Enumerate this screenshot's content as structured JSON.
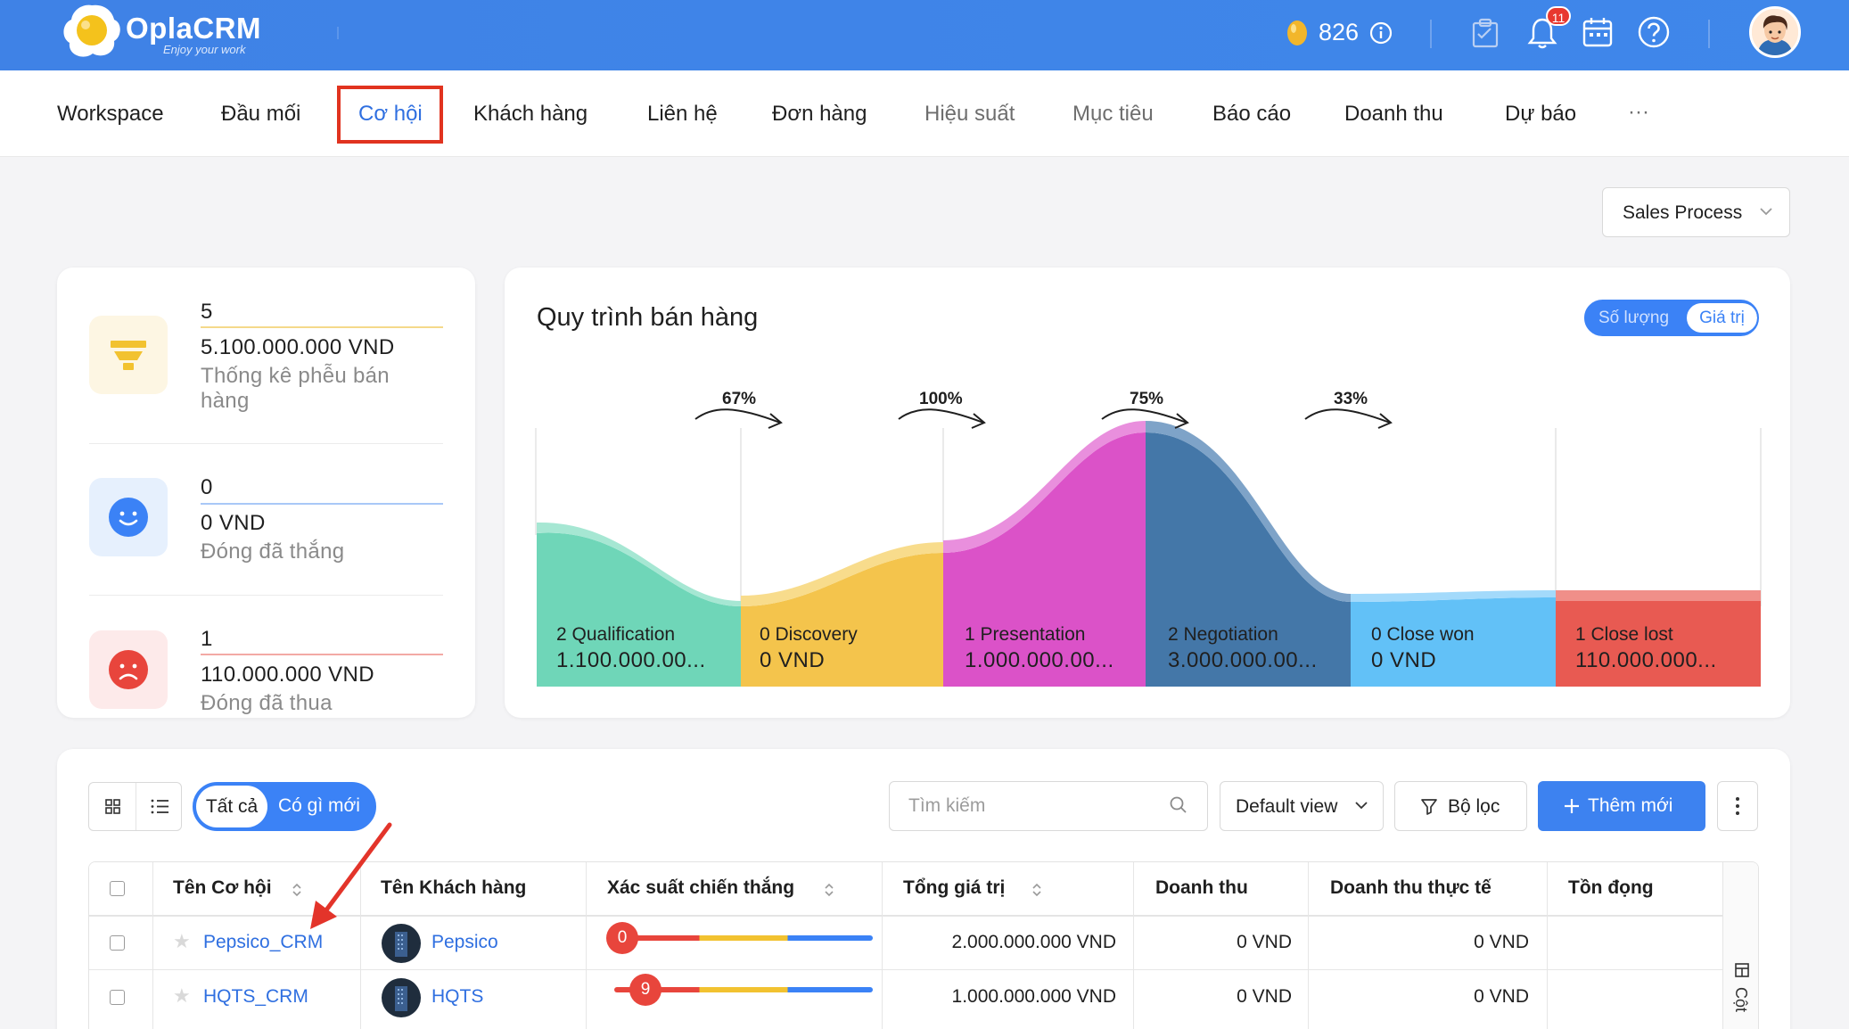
{
  "header": {
    "brand": "OplaCRM",
    "tagline": "Enjoy your work",
    "coins": "826",
    "notification_count": "11"
  },
  "nav": {
    "items": [
      {
        "label": "Workspace",
        "state": "normal"
      },
      {
        "label": "Đầu mối",
        "state": "normal"
      },
      {
        "label": "Cơ hội",
        "state": "active"
      },
      {
        "label": "Khách hàng",
        "state": "normal"
      },
      {
        "label": "Liên hệ",
        "state": "normal"
      },
      {
        "label": "Đơn hàng",
        "state": "normal"
      },
      {
        "label": "Hiệu suất",
        "state": "muted"
      },
      {
        "label": "Mục tiêu",
        "state": "muted"
      },
      {
        "label": "Báo cáo",
        "state": "normal"
      },
      {
        "label": "Doanh thu",
        "state": "normal"
      },
      {
        "label": "Dự báo",
        "state": "normal"
      }
    ],
    "more": "···"
  },
  "process_select": {
    "value": "Sales Process"
  },
  "stats": [
    {
      "count": "5",
      "amount": "5.100.000.000 VND",
      "label": "Thống kê phễu bán hàng",
      "color": "#f2c94c",
      "icon": "funnel-icon"
    },
    {
      "count": "0",
      "amount": "0 VND",
      "label": "Đóng đã thắng",
      "color": "#3b82f6",
      "icon": "smile-icon"
    },
    {
      "count": "1",
      "amount": "110.000.000 VND",
      "label": "Đóng đã thua",
      "color": "#e8453c",
      "icon": "sad-icon"
    }
  ],
  "funnel": {
    "title": "Quy trình bán hàng",
    "toggle": {
      "left": "Số lượng",
      "right": "Giá trị"
    },
    "conversions": [
      "67%",
      "100%",
      "75%",
      "33%"
    ],
    "stages": [
      {
        "name": "2 Qualification",
        "amount": "1.100.000.00...",
        "color": "#6fd6b8"
      },
      {
        "name": "0 Discovery",
        "amount": "0 VND",
        "color": "#f4c44c"
      },
      {
        "name": "1 Presentation",
        "amount": "1.000.000.00...",
        "color": "#db52c8"
      },
      {
        "name": "2 Negotiation",
        "amount": "3.000.000.00...",
        "color": "#4477a8"
      },
      {
        "name": "0 Close won",
        "amount": "0 VND",
        "color": "#62c1f7"
      },
      {
        "name": "1 Close lost",
        "amount": "110.000.000...",
        "color": "#e85a52"
      }
    ]
  },
  "toolbar": {
    "filter_all": "Tất cả",
    "filter_new": "Có gì mới",
    "search_placeholder": "Tìm kiếm",
    "view": "Default view",
    "filter_label": "Bộ lọc",
    "add_label": "Thêm mới"
  },
  "table": {
    "columns": [
      "Tên Cơ hội",
      "Tên Khách hàng",
      "Xác suất chiến thắng",
      "Tổng giá trị",
      "Doanh thu",
      "Doanh thu thực tế",
      "Tồn đọng"
    ],
    "side_label": "Cột",
    "rows": [
      {
        "name": "Pepsico_CRM",
        "customer": "Pepsico",
        "probability": "0",
        "total": "2.000.000.000 VND",
        "revenue": "0 VND",
        "actual": "0 VND",
        "backlog": ""
      },
      {
        "name": "HQTS_CRM",
        "customer": "HQTS",
        "probability": "9",
        "total": "1.000.000.000 VND",
        "revenue": "0 VND",
        "actual": "0 VND",
        "backlog": ""
      }
    ]
  }
}
